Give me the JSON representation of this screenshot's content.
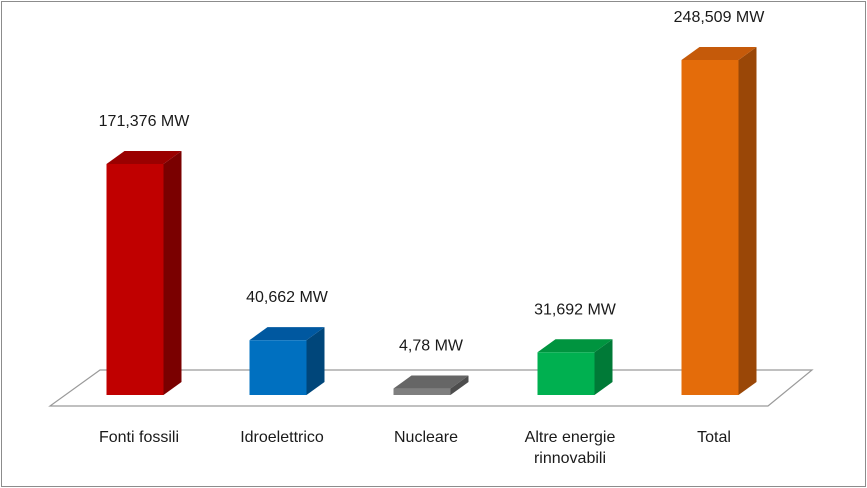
{
  "chart_data": {
    "type": "bar",
    "style": "3d-column",
    "title": "",
    "xlabel": "",
    "ylabel": "",
    "categories": [
      "Fonti fossili",
      "Idroelettrico",
      "Nucleare",
      "Altre energie rinnovabili",
      "Total"
    ],
    "category_lines": [
      [
        "Fonti fossili"
      ],
      [
        "Idroelettrico"
      ],
      [
        "Nucleare"
      ],
      [
        "Altre energie",
        "rinnovabili"
      ],
      [
        "Total"
      ]
    ],
    "values": [
      171.376,
      40.662,
      4.78,
      31.692,
      248.509
    ],
    "data_labels": [
      "171,376 MW",
      "40,662 MW",
      "4,78 MW",
      "31,692 MW",
      "248,509 MW"
    ],
    "unit": "MW",
    "ylim": [
      0,
      248.509
    ],
    "grid": false,
    "legend": "none",
    "colors": {
      "front": [
        "#c00000",
        "#0070c0",
        "#7f7f7f",
        "#00b050",
        "#e46c0a"
      ],
      "side": [
        "#7a0000",
        "#00467a",
        "#4d4d4d",
        "#007a37",
        "#9a4707"
      ],
      "top": [
        "#9a0000",
        "#0058a0",
        "#666666",
        "#00943f",
        "#c55a0a"
      ],
      "floor_stroke": "#9a9a9a",
      "frame": "#8c8c8c"
    }
  }
}
